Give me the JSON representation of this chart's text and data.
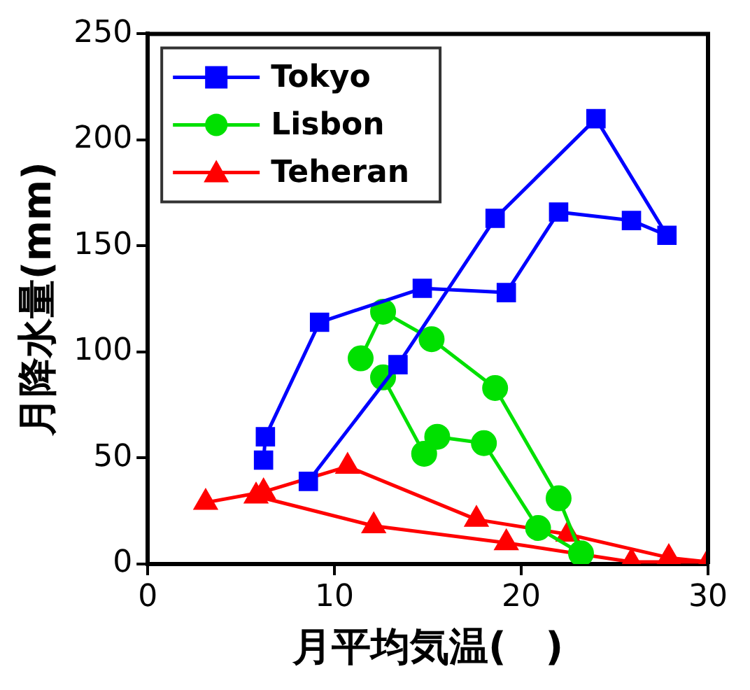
{
  "chart_data": {
    "type": "line",
    "xlabel": "月平均気温(　)",
    "ylabel": "月降水量(mm)",
    "xlim": [
      0,
      30
    ],
    "xticks": [
      0,
      10,
      20,
      30
    ],
    "ylim": [
      0,
      250
    ],
    "yticks": [
      0,
      50,
      100,
      150,
      200,
      250
    ],
    "grid": false,
    "legend": "top left",
    "series": [
      {
        "name": "Tokyo",
        "color": "#0000ff",
        "marker": "square",
        "x": [
          6.2,
          6.3,
          9.2,
          14.7,
          19.2,
          22.0,
          25.9,
          27.8,
          24.0,
          18.6,
          13.4,
          8.6
        ],
        "values": [
          49,
          60,
          114,
          130,
          128,
          166,
          162,
          155,
          210,
          163,
          94,
          39
        ]
      },
      {
        "name": "Lisbon",
        "color": "#00e000",
        "marker": "circle",
        "x": [
          11.4,
          12.6,
          15.2,
          18.6,
          22.0,
          23.2,
          20.9,
          18.0,
          15.5,
          14.8,
          12.6
        ],
        "values": [
          97,
          119,
          106,
          83,
          31,
          5,
          17,
          57,
          60,
          52,
          88
        ]
      },
      {
        "name": "Teheran",
        "color": "#ff0000",
        "marker": "triangle",
        "x": [
          3.1,
          6.2,
          10.7,
          17.6,
          22.5,
          27.9,
          30.0,
          25.9,
          19.2,
          12.1,
          5.8
        ],
        "values": [
          29,
          34,
          46,
          21,
          14,
          3,
          1,
          1,
          10,
          18,
          32
        ]
      }
    ]
  }
}
